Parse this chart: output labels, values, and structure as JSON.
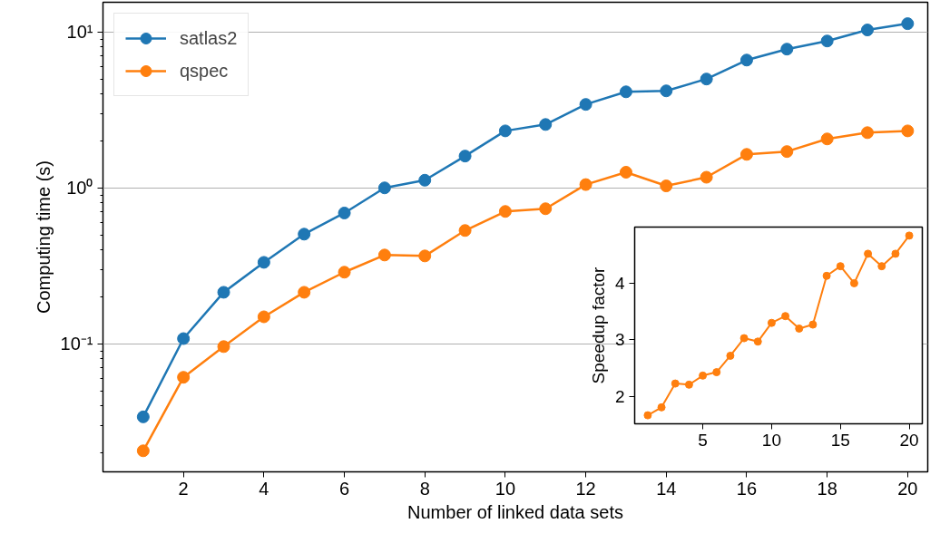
{
  "chart_data": [
    {
      "type": "line",
      "xlabel": "Number of linked data sets",
      "ylabel": "Computing time (s)",
      "log": "y",
      "grid": "y",
      "legend": "top left",
      "marker": "circle",
      "x": [
        1,
        2,
        3,
        4,
        5,
        6,
        7,
        8,
        9,
        10,
        11,
        12,
        13,
        14,
        15,
        16,
        17,
        18,
        19,
        20
      ],
      "series": [
        {
          "name": "satlas2",
          "color": "#1f77b4",
          "values": [
            0.034,
            0.108,
            0.214,
            0.333,
            0.505,
            0.69,
            1.0,
            1.12,
            1.6,
            2.32,
            2.55,
            3.43,
            4.13,
            4.19,
            4.99,
            6.6,
            7.76,
            8.75,
            10.3,
            11.3
          ]
        },
        {
          "name": "qspec",
          "color": "#ff7f0e",
          "values": [
            0.0206,
            0.061,
            0.096,
            0.149,
            0.214,
            0.288,
            0.371,
            0.366,
            0.533,
            0.706,
            0.735,
            1.05,
            1.26,
            1.03,
            1.17,
            1.64,
            1.71,
            2.06,
            2.26,
            2.32
          ]
        }
      ],
      "xlim": [
        0,
        20.5
      ],
      "ylim": [
        0.0151,
        15.5
      ],
      "xticks": [
        2,
        4,
        6,
        8,
        10,
        12,
        14,
        16,
        18,
        20
      ],
      "yticks": [
        {
          "value": 0.1,
          "label": "10⁻¹"
        },
        {
          "value": 1,
          "label": "10⁰"
        },
        {
          "value": 10,
          "label": "10¹"
        }
      ]
    },
    {
      "type": "line",
      "ylabel": "Speedup factor",
      "marker": "circle",
      "x": [
        1,
        2,
        3,
        4,
        5,
        6,
        7,
        8,
        9,
        10,
        11,
        12,
        13,
        14,
        15,
        16,
        17,
        18,
        19,
        20
      ],
      "series": [
        {
          "color": "#ff7f0e",
          "values": [
            1.67,
            1.81,
            2.23,
            2.21,
            2.37,
            2.43,
            2.72,
            3.03,
            2.97,
            3.3,
            3.42,
            3.2,
            3.27,
            4.13,
            4.3,
            4.0,
            4.52,
            4.3,
            4.52,
            4.84
          ]
        }
      ],
      "xlim": [
        0.05,
        20.95
      ],
      "ylim": [
        1.52,
        4.99
      ],
      "xticks": [
        5,
        10,
        15,
        20
      ],
      "yticks": [
        2,
        3,
        4
      ]
    }
  ]
}
